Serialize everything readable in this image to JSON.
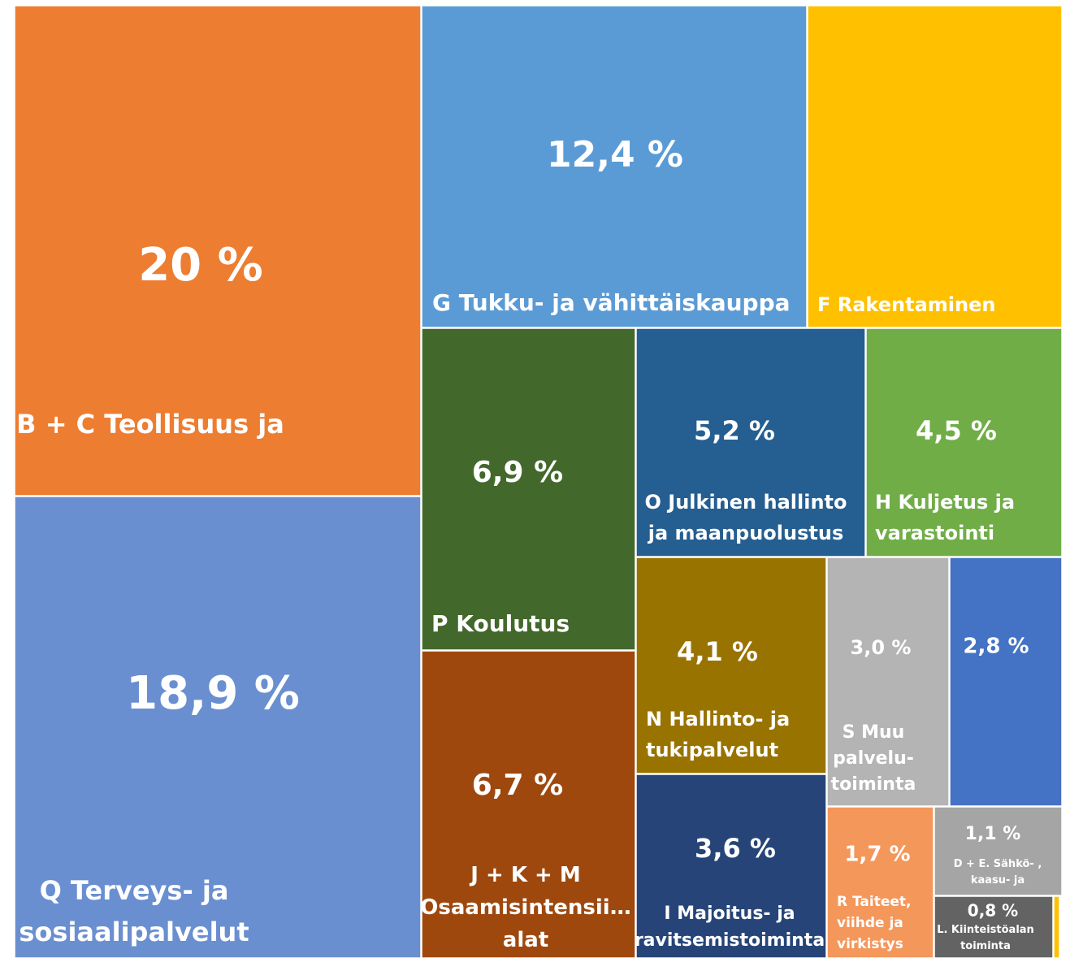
{
  "chart_data": {
    "type": "treemap",
    "items": [
      {
        "name": "B + C Teollisuus ja kaivostoiminta",
        "value": 20,
        "value_label": "20 %",
        "color": "#ed7d31"
      },
      {
        "name": "Q Terveys- ja sosiaalipalvelut",
        "value": 18.9,
        "value_label": "18,9 %",
        "color": "#6a8fd0"
      },
      {
        "name": "G Tukku- ja vähittäiskauppa",
        "value": 12.4,
        "value_label": "12,4 %",
        "color": "#5b9bd5"
      },
      {
        "name": "F Rakentaminen",
        "value": 8.2,
        "value_label": null,
        "color": "#ffc000"
      },
      {
        "name": "P Koulutus",
        "value": 6.9,
        "value_label": "6,9 %",
        "color": "#43682b"
      },
      {
        "name": "J + K + M Osaamisintensii… alat",
        "value": 6.7,
        "value_label": "6,7 %",
        "color": "#9e480e"
      },
      {
        "name": "O Julkinen hallinto ja maanpuolustus",
        "value": 5.2,
        "value_label": "5,2 %",
        "color": "#255e91"
      },
      {
        "name": "H Kuljetus ja varastointi",
        "value": 4.5,
        "value_label": "4,5 %",
        "color": "#70ad47"
      },
      {
        "name": "N Hallinto- ja tukipalvelut",
        "value": 4.1,
        "value_label": "4,1 %",
        "color": "#997300"
      },
      {
        "name": "I Majoitus- ja ravitsemistoiminta",
        "value": 3.6,
        "value_label": "3,6 %",
        "color": "#264478"
      },
      {
        "name": "S Muu palvelu-toiminta",
        "value": 3.0,
        "value_label": "3,0 %",
        "color": "#b4b4b4"
      },
      {
        "name": null,
        "value": 2.8,
        "value_label": "2,8 %",
        "color": "#4472c4"
      },
      {
        "name": "R Taiteet, viihde ja virkistys",
        "value": 1.7,
        "value_label": "1,7 %",
        "color": "#f4975b"
      },
      {
        "name": "D + E. Sähkö-, kaasu- ja vesihuolto",
        "value": 1.1,
        "value_label": "1,1 %",
        "color": "#a5a5a5"
      },
      {
        "name": "L. Kiinteistöalan toiminta",
        "value": 0.8,
        "value_label": "0,8 %",
        "color": "#636363"
      },
      {
        "name": null,
        "value": 0.1,
        "value_label": null,
        "color": "#ffc000"
      }
    ]
  }
}
